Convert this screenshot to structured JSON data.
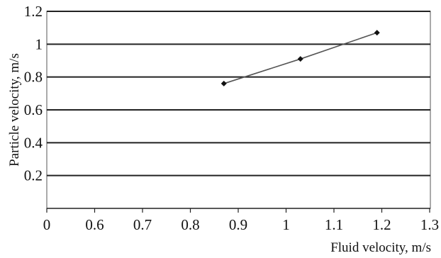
{
  "chart_data": {
    "type": "line",
    "title": "",
    "xlabel": "Fluid velocity, m/s",
    "ylabel": "Particle velocity, m/s",
    "x_ticks": [
      "0",
      "0.6",
      "0.7",
      "0.8",
      "0.9",
      "1",
      "1.1",
      "1.2",
      "1.3"
    ],
    "y_ticks": [
      "0.2",
      "0.4",
      "0.6",
      "0.8",
      "1",
      "1.2"
    ],
    "xlim": [
      0.5,
      1.3
    ],
    "ylim": [
      0,
      1.2
    ],
    "x_axis_break": "first tick labelled 0; axis jumps to 0.6",
    "grid": "horizontal major gridlines",
    "legend": "none",
    "series": [
      {
        "x": [
          0.87,
          1.03,
          1.19
        ],
        "y": [
          0.76,
          0.91,
          1.07
        ],
        "color": "#555555",
        "marker": "diamond"
      }
    ]
  }
}
